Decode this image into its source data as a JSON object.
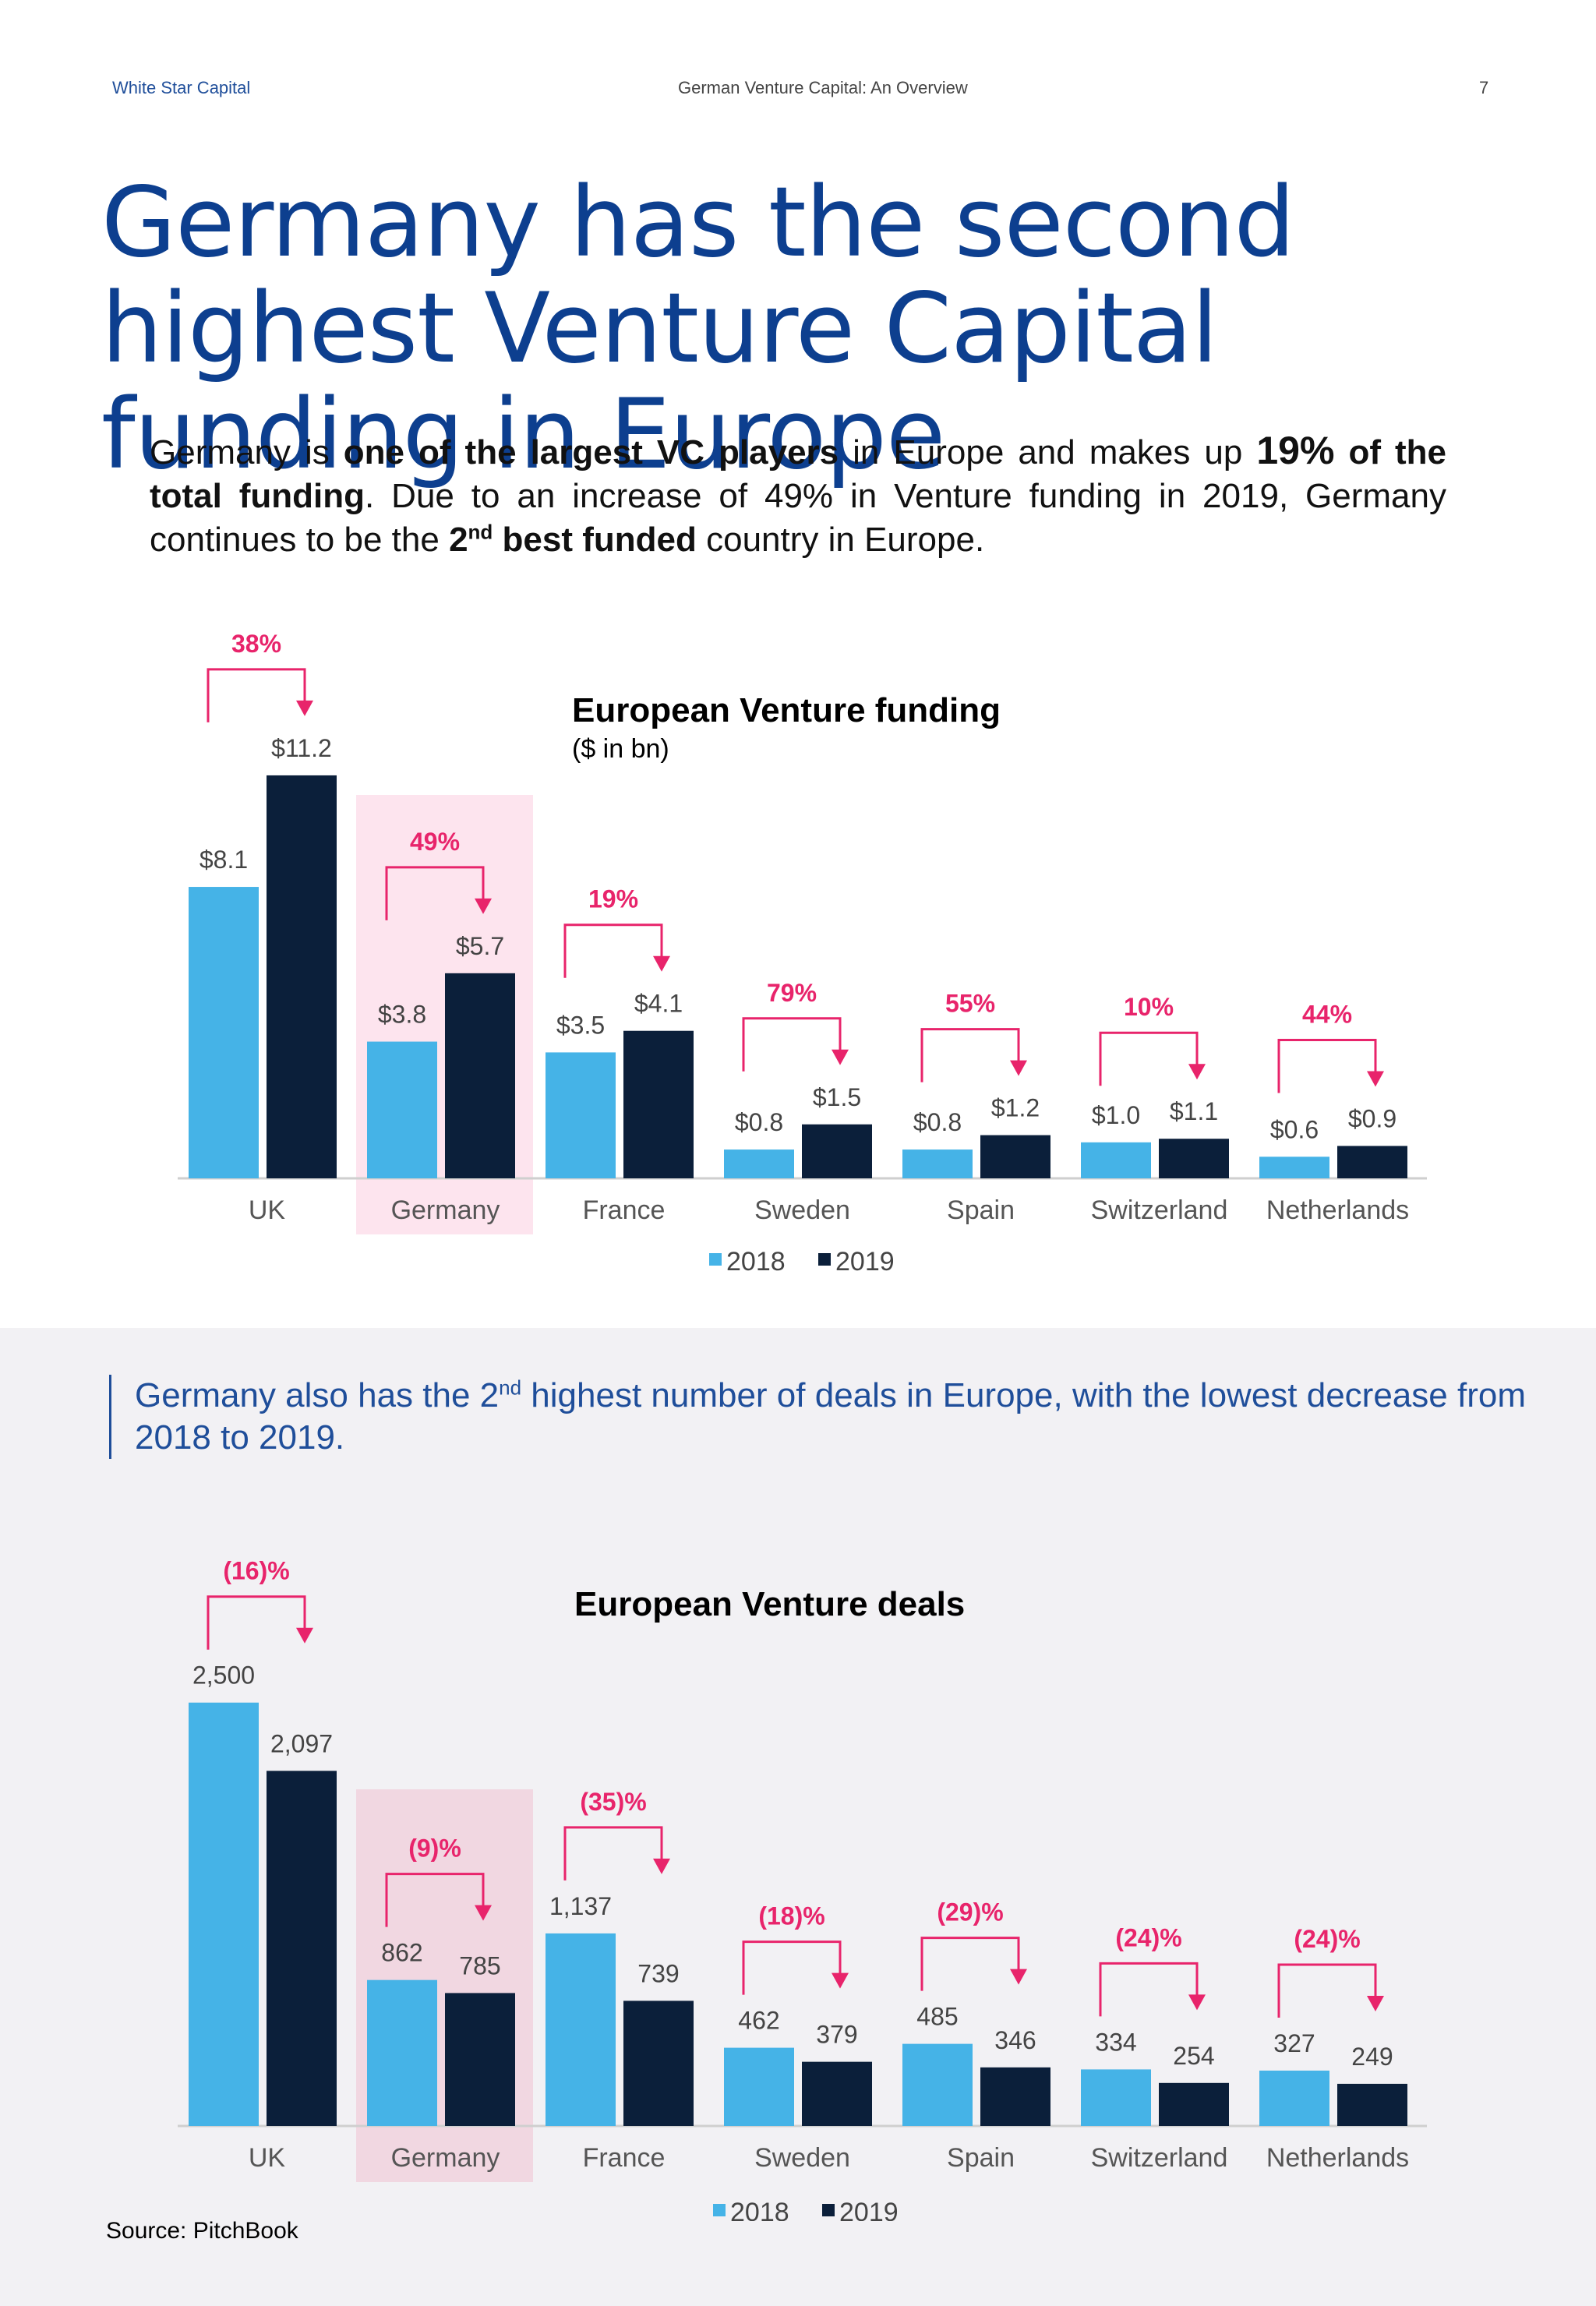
{
  "header": {
    "left": "White Star Capital",
    "center": "German Venture Capital: An Overview",
    "page_number": "7"
  },
  "title": "Germany has the second highest Venture Capital funding in Europe",
  "intro": {
    "t1": "Germany is ",
    "b1": "one of the largest VC players",
    "t2": " in Europe and makes up ",
    "b2": "19%",
    "b3": " of the total funding",
    "t3": ". Due to an increase of 49% in Venture funding in 2019, Germany continues to be the ",
    "b4": "2",
    "sup": "nd",
    "b5": " best funded",
    "t4": " country in Europe."
  },
  "callout": {
    "t1": "Germany also has the 2",
    "sup": "nd",
    "t2": " highest number of deals in Europe, with the lowest decrease from 2018 to 2019."
  },
  "source": "Source: PitchBook",
  "colors": {
    "y2018": "#45b3e7",
    "y2019": "#0b1f3a",
    "change": "#e8246b",
    "highlight_top": "#fde4ee",
    "highlight_bottom": "#f1d7e1"
  },
  "chart_data": [
    {
      "type": "bar",
      "title": "European Venture funding",
      "subtitle": "($ in bn)",
      "categories": [
        "UK",
        "Germany",
        "France",
        "Sweden",
        "Spain",
        "Switzerland",
        "Netherlands"
      ],
      "series": [
        {
          "name": "2018",
          "values": [
            8.1,
            3.8,
            3.5,
            0.8,
            0.8,
            1.0,
            0.6
          ],
          "labels": [
            "$8.1",
            "$3.8",
            "$3.5",
            "$0.8",
            "$0.8",
            "$1.0",
            "$0.6"
          ]
        },
        {
          "name": "2019",
          "values": [
            11.2,
            5.7,
            4.1,
            1.5,
            1.2,
            1.1,
            0.9
          ],
          "labels": [
            "$11.2",
            "$5.7",
            "$4.1",
            "$1.5",
            "$1.2",
            "$1.1",
            "$0.9"
          ]
        }
      ],
      "changes": [
        "38%",
        "49%",
        "19%",
        "79%",
        "55%",
        "10%",
        "44%"
      ],
      "highlight": "Germany",
      "legend": "bottom",
      "ylim": [
        0,
        12
      ]
    },
    {
      "type": "bar",
      "title": "European Venture deals",
      "categories": [
        "UK",
        "Germany",
        "France",
        "Sweden",
        "Spain",
        "Switzerland",
        "Netherlands"
      ],
      "series": [
        {
          "name": "2018",
          "values": [
            2500,
            862,
            1137,
            462,
            485,
            334,
            327
          ],
          "labels": [
            "2,500",
            "862",
            "1,137",
            "462",
            "485",
            "334",
            "327"
          ]
        },
        {
          "name": "2019",
          "values": [
            2097,
            785,
            739,
            379,
            346,
            254,
            249
          ],
          "labels": [
            "2,097",
            "785",
            "739",
            "379",
            "346",
            "254",
            "249"
          ]
        }
      ],
      "changes": [
        "(16)%",
        "(9)%",
        "(35)%",
        "(18)%",
        "(29)%",
        "(24)%",
        "(24)%"
      ],
      "highlight": "Germany",
      "legend": "bottom",
      "ylim": [
        0,
        2600
      ]
    }
  ]
}
